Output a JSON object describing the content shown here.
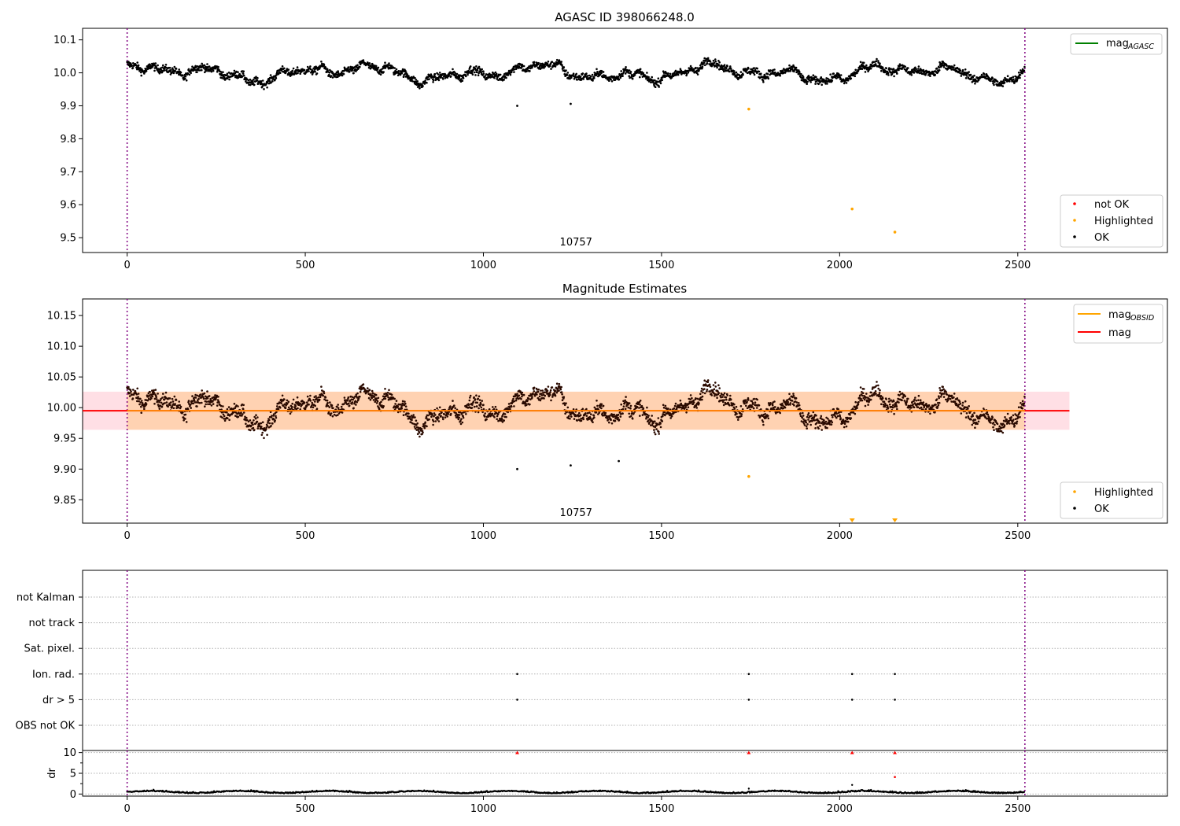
{
  "chart_data": [
    {
      "type": "scatter",
      "title": "AGASC ID 398066248.0",
      "xlim": [
        -125,
        2920
      ],
      "ylim": [
        9.455,
        10.135
      ],
      "xticks": [
        0,
        500,
        1000,
        1500,
        2000,
        2500
      ],
      "yticks": [
        9.5,
        9.6,
        9.7,
        9.8,
        9.9,
        10.0,
        10.1
      ],
      "ytick_decimals": 1,
      "vlines": [
        0,
        2520
      ],
      "line_legend": [
        {
          "label": "mag",
          "sub": "AGASC",
          "color": "#008000"
        }
      ],
      "point_legend": [
        {
          "label": "not OK",
          "color": "#ff0000"
        },
        {
          "label": "Highlighted",
          "color": "#ffa500"
        },
        {
          "label": "OK",
          "color": "#000000"
        }
      ],
      "obsid_label": "10757",
      "obsid_label_x": 1260,
      "series_ok": {
        "name": "OK",
        "color": "#000000",
        "base": 10.0,
        "amplitude": 0.045,
        "n": 2520
      },
      "highlighted": [
        {
          "x": 1745,
          "y": 9.89
        },
        {
          "x": 2035,
          "y": 9.587
        },
        {
          "x": 2155,
          "y": 9.517
        }
      ],
      "outliers": [
        {
          "x": 1095,
          "y": 9.9
        },
        {
          "x": 1245,
          "y": 9.906
        }
      ]
    },
    {
      "type": "scatter",
      "title": "Magnitude Estimates",
      "xlim": [
        -125,
        2920
      ],
      "ylim": [
        9.812,
        10.177
      ],
      "xticks": [
        0,
        500,
        1000,
        1500,
        2000,
        2500
      ],
      "yticks": [
        9.85,
        9.9,
        9.95,
        10.0,
        10.05,
        10.1,
        10.15
      ],
      "ytick_decimals": 2,
      "vlines": [
        0,
        2520
      ],
      "line_legend": [
        {
          "label": "mag",
          "sub": "OBSID",
          "color": "#ffa500"
        },
        {
          "label": "mag",
          "sub": "",
          "color": "#ff0000"
        }
      ],
      "point_legend": [
        {
          "label": "Highlighted",
          "color": "#ffa500"
        },
        {
          "label": "OK",
          "color": "#000000"
        }
      ],
      "obsid_label": "10757",
      "obsid_label_x": 1260,
      "mean_mag": 9.995,
      "band": [
        9.964,
        10.026
      ],
      "band_x": [
        -125,
        2645
      ],
      "obsid_band_x": [
        0,
        2520
      ],
      "series_ok": {
        "name": "OK",
        "color": "#000000",
        "base": 10.0,
        "amplitude": 0.045,
        "n": 2520
      },
      "highlighted": [
        {
          "x": 1745,
          "y": 9.888
        }
      ],
      "highlighted_markers": [
        2035,
        2155
      ],
      "outliers": [
        {
          "x": 1095,
          "y": 9.9
        },
        {
          "x": 1245,
          "y": 9.906
        },
        {
          "x": 1380,
          "y": 9.913
        }
      ]
    },
    {
      "type": "scatter",
      "title": "",
      "xlim": [
        -125,
        2920
      ],
      "xticks": [
        0,
        500,
        1000,
        1500,
        2000,
        2500
      ],
      "vlines": [
        0,
        2520
      ],
      "flag_rows": [
        "not Kalman",
        "not track",
        "Sat. pixel.",
        "Ion. rad.",
        "dr > 5",
        "OBS not OK"
      ],
      "flags": {
        "Ion. rad.": [
          1095,
          1745,
          2035,
          2155
        ],
        "dr > 5": [
          1095,
          1745,
          2035,
          2155
        ]
      },
      "dr": {
        "ylabel": "dr",
        "ylim": [
          -0.5,
          10.5
        ],
        "yticks": [
          0,
          5,
          10
        ],
        "baseline": 0.4,
        "clipped": [
          1095,
          1745,
          2035,
          2155
        ],
        "spikes": [
          {
            "x": 1745,
            "y": 1.3
          },
          {
            "x": 2035,
            "y": 2.2
          },
          {
            "x": 2155,
            "y": 4.1
          }
        ]
      }
    }
  ]
}
